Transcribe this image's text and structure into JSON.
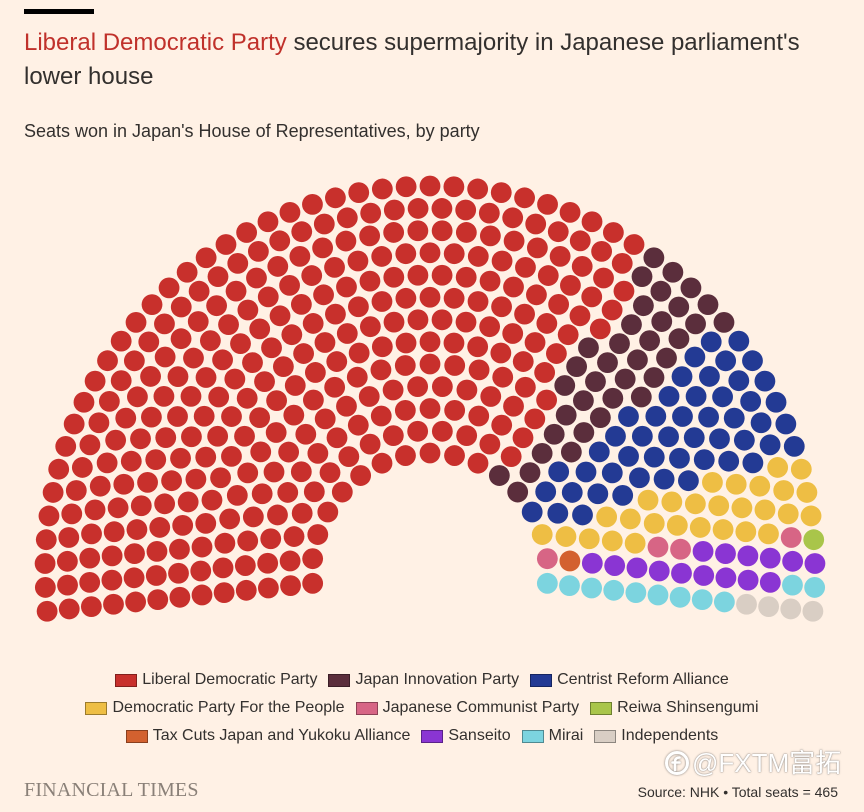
{
  "chart_data": {
    "type": "pie",
    "title": {
      "highlight": "Liberal Democratic Party",
      "rest": "secures supermajority in Japanese parliament's lower house"
    },
    "subtitle": "Seats won in Japan's House of Representatives, by party",
    "total_seats": 465,
    "series": [
      {
        "name": "Liberal Democratic Party",
        "seats": 316,
        "color": "#C8302C"
      },
      {
        "name": "Japan Innovation Party",
        "seats": 36,
        "color": "#5B2E3C"
      },
      {
        "name": "Centrist Reform Alliance",
        "seats": 49,
        "color": "#233A94"
      },
      {
        "name": "Democratic Party For the People",
        "seats": 28,
        "color": "#EEBE44"
      },
      {
        "name": "Japanese Communist Party",
        "seats": 4,
        "color": "#D76585"
      },
      {
        "name": "Reiwa Shinsengumi",
        "seats": 1,
        "color": "#A9C54A"
      },
      {
        "name": "Tax Cuts Japan and Yukoku Alliance",
        "seats": 1,
        "color": "#D3612F"
      },
      {
        "name": "Sanseito",
        "seats": 15,
        "color": "#8A35D3"
      },
      {
        "name": "Mirai",
        "seats": 11,
        "color": "#7CD4DF"
      },
      {
        "name": "Independents",
        "seats": 4,
        "color": "#D9CEC4"
      }
    ],
    "legend_position": "bottom",
    "source": "Source: NHK • Total seats = 465"
  },
  "branding": {
    "publisher": "FINANCIAL TIMES",
    "watermark": "@FXTM富拓"
  },
  "colors": {
    "background": "#FFF1E5",
    "text": "#33302E",
    "title_highlight": "#C0312B"
  }
}
